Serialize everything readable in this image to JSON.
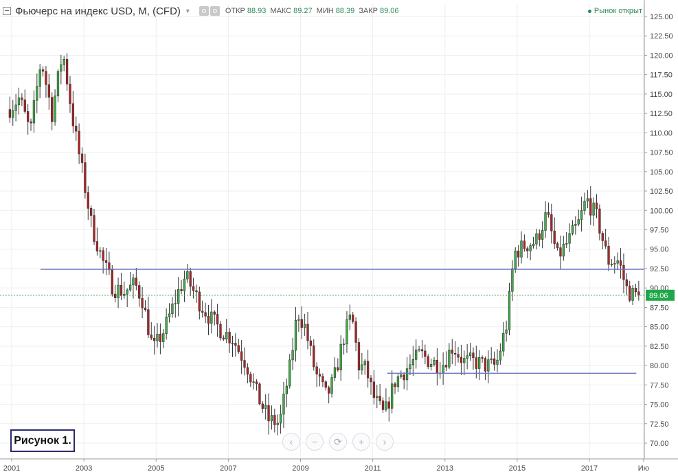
{
  "header": {
    "symbol_title": "Фьючерс на индекс USD, M, (CFD)",
    "ohlc": [
      {
        "label": "ОТКР",
        "value": "88.93"
      },
      {
        "label": "МАКС",
        "value": "89.27"
      },
      {
        "label": "МИН",
        "value": "88.39"
      },
      {
        "label": "ЗАКР",
        "value": "89.06"
      }
    ],
    "market_status": "Рынок открыт"
  },
  "figure_label": "Рисунок 1.",
  "colors": {
    "up": "#3cb043",
    "down": "#b22222",
    "grid": "#eeeeee",
    "support_line": "#6a74c4",
    "price_line": "#2e9e48",
    "price_tag_bg": "#1fa84a"
  },
  "nav_buttons": [
    {
      "name": "scroll-left",
      "icon": "chevron-left-icon",
      "glyph": "‹"
    },
    {
      "name": "zoom-out",
      "icon": "minus-icon",
      "glyph": "−"
    },
    {
      "name": "reset",
      "icon": "refresh-icon",
      "glyph": "⟳"
    },
    {
      "name": "zoom-in",
      "icon": "plus-icon",
      "glyph": "+"
    },
    {
      "name": "scroll-right",
      "icon": "chevron-right-icon",
      "glyph": "›"
    }
  ],
  "chart_data": {
    "type": "candlestick",
    "interval": "monthly",
    "y_range": [
      67.5,
      126.25
    ],
    "y_ticks": [
      "125.00",
      "122.50",
      "120.00",
      "117.50",
      "115.00",
      "112.50",
      "110.00",
      "107.50",
      "105.00",
      "102.50",
      "100.00",
      "97.50",
      "95.00",
      "92.50",
      "90.00",
      "87.50",
      "85.00",
      "82.50",
      "80.00",
      "77.50",
      "75.00",
      "72.50",
      "70.00"
    ],
    "x_tick_labels": [
      "2001",
      "2003",
      "2005",
      "2007",
      "2009",
      "2011",
      "2013",
      "2015",
      "2017",
      "Ию"
    ],
    "x_tick_years": [
      2001,
      2003,
      2005,
      2007,
      2009,
      2011,
      2013,
      2015,
      2017,
      2018.5
    ],
    "x_range": [
      2000.9,
      2018.55
    ],
    "last_price": 89.06,
    "grid": true,
    "horizontal_lines": [
      {
        "name": "resistance-line",
        "y": 92.4,
        "x_start": 2001.8,
        "x_end": 2018.55
      },
      {
        "name": "support-line",
        "y": 79.0,
        "x_start": 2011.4,
        "x_end": 2018.3
      }
    ],
    "anchors": [
      [
        2001.0,
        113.0
      ],
      [
        2001.3,
        114.5
      ],
      [
        2001.6,
        110.0
      ],
      [
        2001.9,
        119.5
      ],
      [
        2002.2,
        112.5
      ],
      [
        2002.5,
        120.5
      ],
      [
        2002.8,
        111.0
      ],
      [
        2003.0,
        106.0
      ],
      [
        2003.3,
        98.0
      ],
      [
        2003.6,
        93.5
      ],
      [
        2003.9,
        90.0
      ],
      [
        2004.2,
        89.5
      ],
      [
        2004.5,
        90.5
      ],
      [
        2004.7,
        88.5
      ],
      [
        2005.0,
        82.0
      ],
      [
        2005.3,
        84.5
      ],
      [
        2005.7,
        89.5
      ],
      [
        2005.9,
        91.5
      ],
      [
        2006.3,
        88.0
      ],
      [
        2006.6,
        86.0
      ],
      [
        2006.9,
        84.5
      ],
      [
        2007.2,
        83.5
      ],
      [
        2007.6,
        80.0
      ],
      [
        2007.9,
        76.0
      ],
      [
        2008.2,
        73.0
      ],
      [
        2008.5,
        72.5
      ],
      [
        2008.8,
        80.0
      ],
      [
        2009.0,
        87.0
      ],
      [
        2009.2,
        85.0
      ],
      [
        2009.5,
        79.0
      ],
      [
        2009.8,
        76.0
      ],
      [
        2010.0,
        78.0
      ],
      [
        2010.3,
        84.0
      ],
      [
        2010.5,
        86.5
      ],
      [
        2010.7,
        80.0
      ],
      [
        2010.9,
        79.5
      ],
      [
        2011.1,
        76.0
      ],
      [
        2011.4,
        73.5
      ],
      [
        2011.7,
        78.0
      ],
      [
        2012.0,
        79.5
      ],
      [
        2012.4,
        81.5
      ],
      [
        2012.7,
        80.5
      ],
      [
        2013.0,
        80.0
      ],
      [
        2013.3,
        82.5
      ],
      [
        2013.6,
        80.5
      ],
      [
        2013.9,
        80.5
      ],
      [
        2014.2,
        80.0
      ],
      [
        2014.5,
        80.0
      ],
      [
        2014.8,
        85.5
      ],
      [
        2015.0,
        94.5
      ],
      [
        2015.3,
        95.5
      ],
      [
        2015.6,
        96.0
      ],
      [
        2015.9,
        99.5
      ],
      [
        2016.2,
        94.0
      ],
      [
        2016.5,
        96.0
      ],
      [
        2016.8,
        98.5
      ],
      [
        2017.0,
        101.5
      ],
      [
        2017.3,
        99.0
      ],
      [
        2017.6,
        93.5
      ],
      [
        2017.9,
        93.5
      ],
      [
        2018.1,
        90.0
      ],
      [
        2018.25,
        89.2
      ],
      [
        2018.42,
        89.06
      ]
    ]
  }
}
